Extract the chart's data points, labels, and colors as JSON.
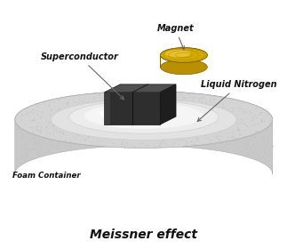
{
  "title": "Meissner effect",
  "labels": {
    "magnet": "Magnet",
    "superconductor": "Superconductor",
    "liquid_nitrogen": "Liquid Nitrogen",
    "foam_container": "Foam Container"
  },
  "colors": {
    "background": "#ffffff",
    "foam_face": "#d4d4d4",
    "foam_side": "#c8c8c8",
    "foam_dot": "#c0c0c0",
    "inner_rim": "#e8e8e8",
    "inner_rim2": "#efefef",
    "liquid_white": "#f8f8f8",
    "liquid_bright": "#ffffff",
    "sc_front": "#2e2e2e",
    "sc_top": "#505050",
    "sc_right": "#1e1e1e",
    "sc_groove": "#111111",
    "magnet_side": "#b89000",
    "magnet_top": "#d4aa00",
    "magnet_highlight": "#f0cc40",
    "title_color": "#111111",
    "label_color": "#111111",
    "arrow_color": "#666666"
  },
  "figsize": [
    3.32,
    2.8
  ],
  "dpi": 100
}
